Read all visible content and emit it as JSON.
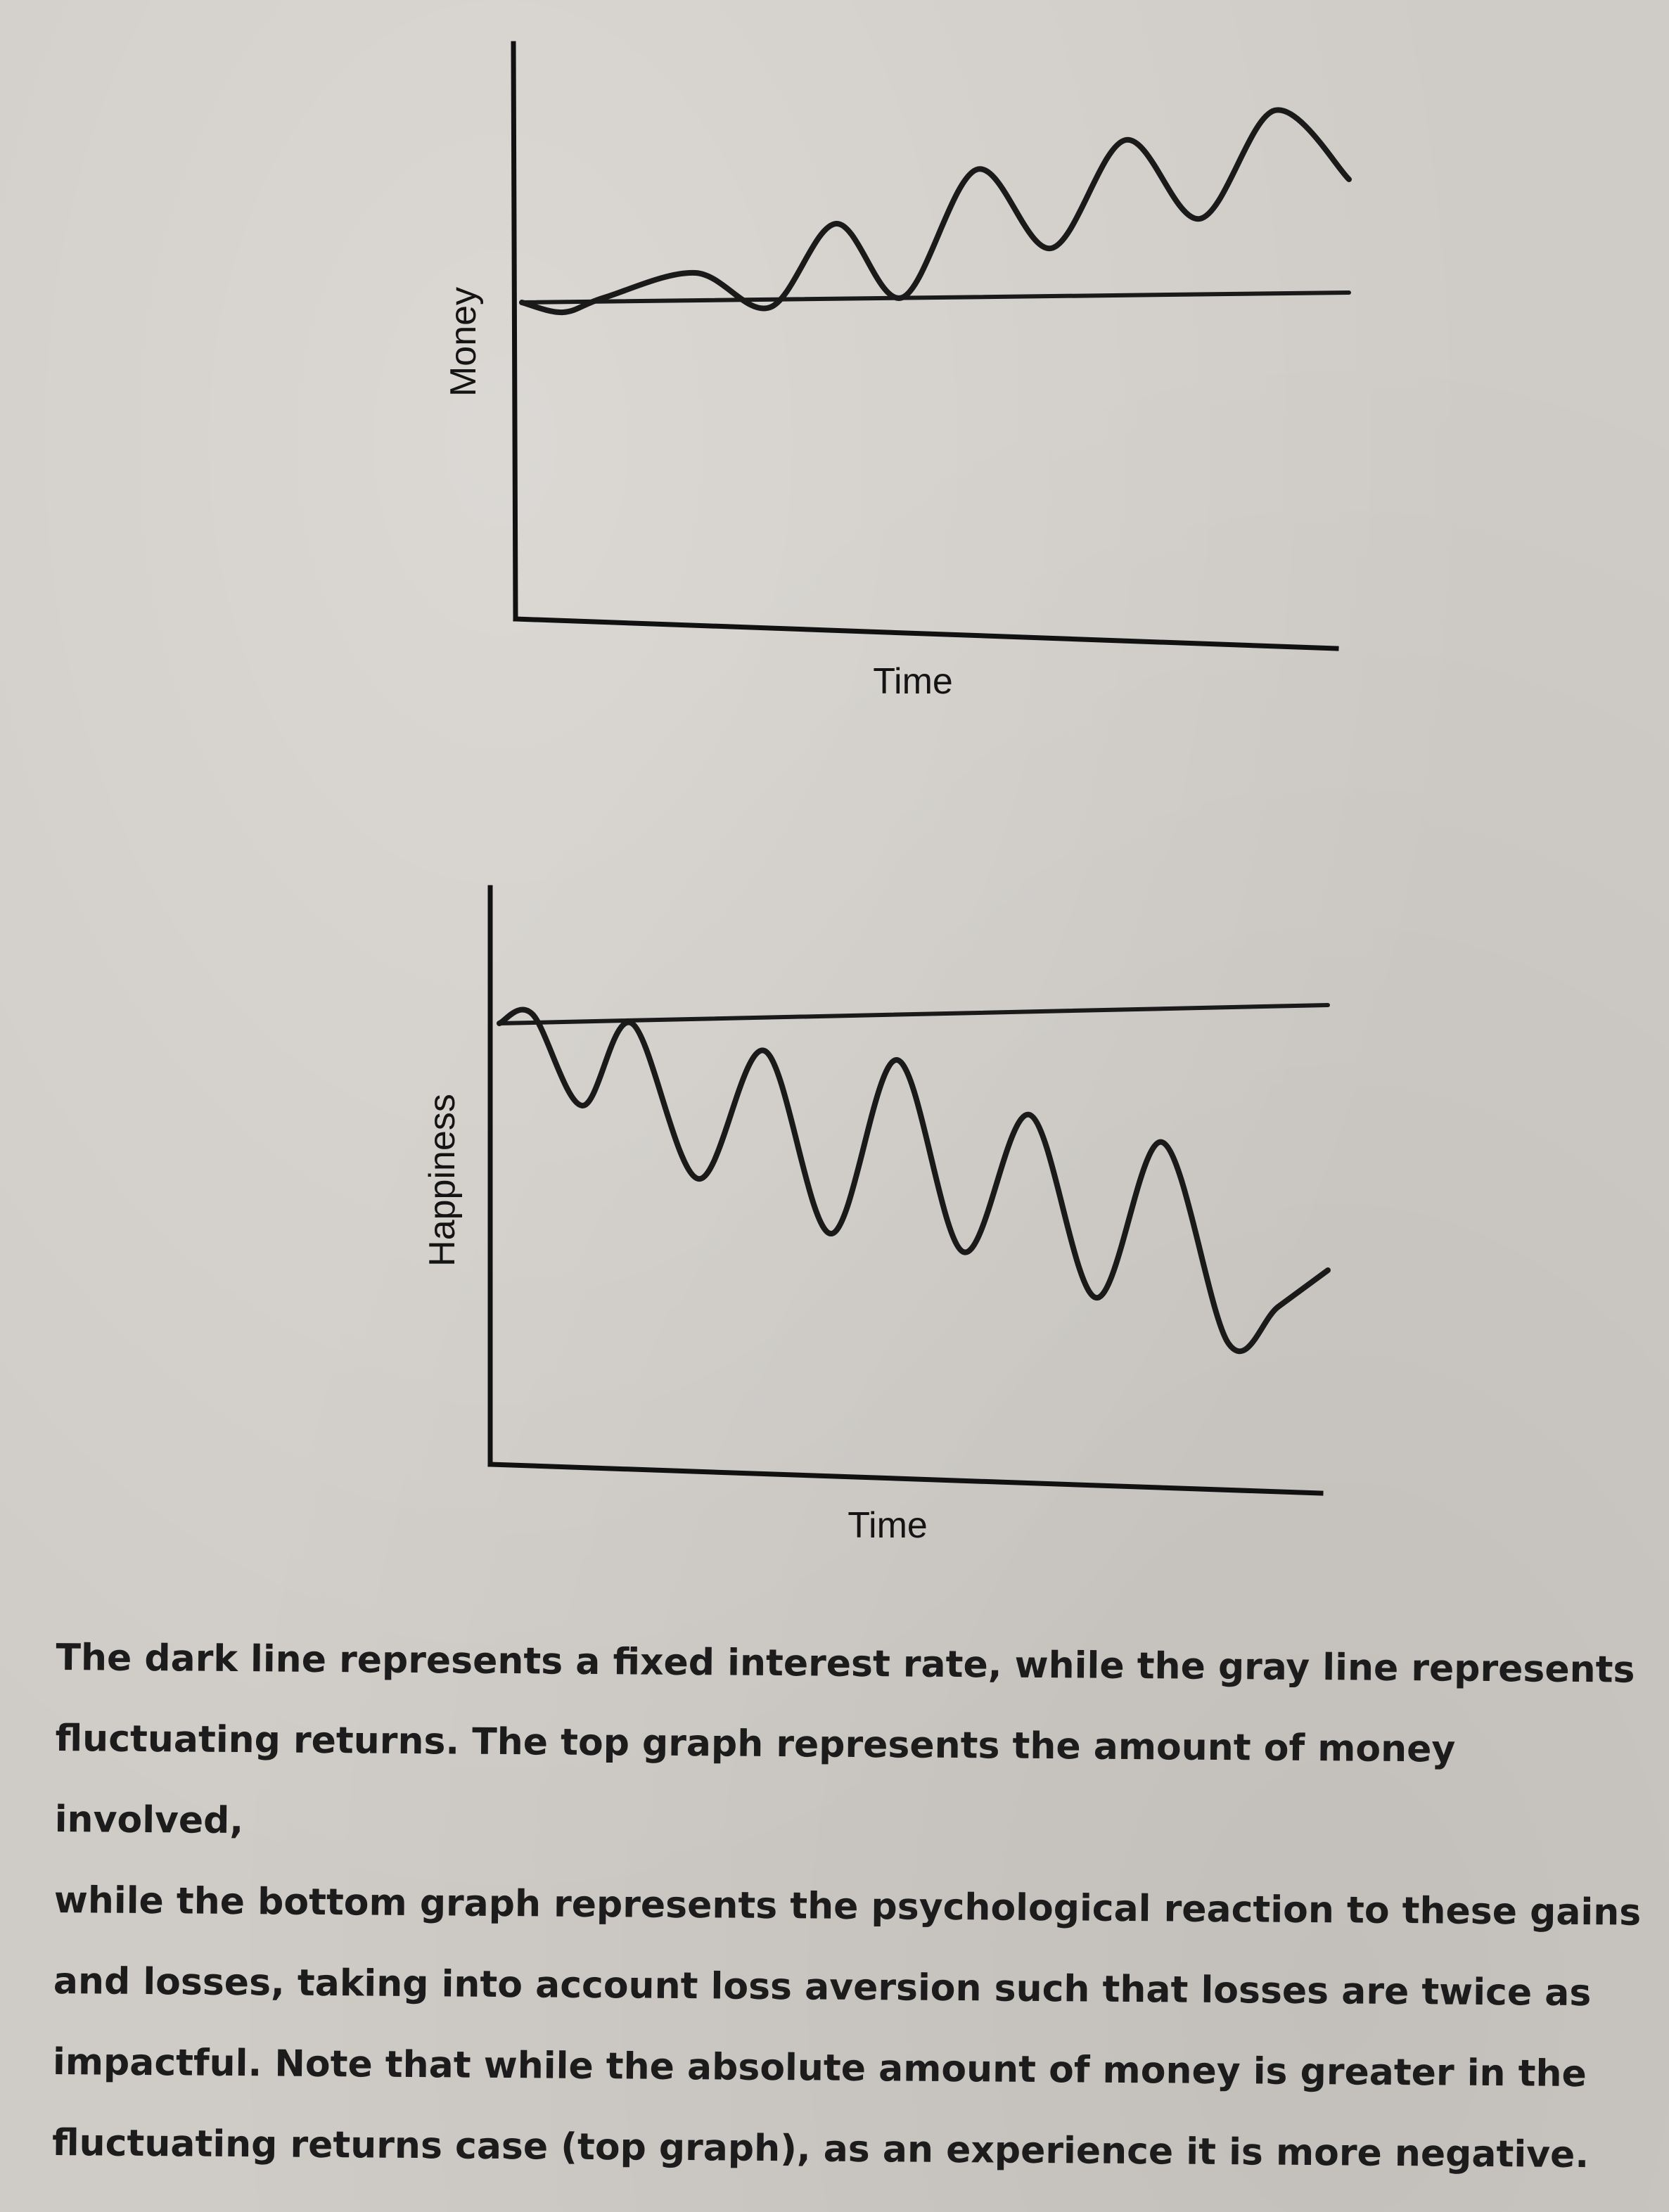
{
  "chart_data": [
    {
      "type": "line",
      "ylabel": "Money",
      "xlabel": "Time",
      "series": [
        {
          "style": "straight",
          "color": "#1a1a1a",
          "x": [
            0,
            1
          ],
          "y": [
            1.0,
            1.1
          ]
        },
        {
          "style": "wavy",
          "color": "#1a1a1a",
          "x": [
            0,
            0.05,
            0.1,
            0.21,
            0.3,
            0.38,
            0.46,
            0.55,
            0.64,
            0.73,
            0.82,
            0.91,
            1.0
          ],
          "y": [
            1.0,
            0.9,
            1.05,
            1.3,
            0.95,
            1.8,
            1.05,
            2.35,
            1.55,
            2.65,
            1.85,
            2.95,
            2.25
          ]
        }
      ],
      "grid": false
    },
    {
      "type": "line",
      "ylabel": "Happiness",
      "xlabel": "Time",
      "series": [
        {
          "style": "straight",
          "color": "#1a1a1a",
          "x": [
            0,
            1
          ],
          "y": [
            1.0,
            1.1
          ]
        },
        {
          "style": "wavy",
          "color": "#1a1a1a",
          "x": [
            0,
            0.04,
            0.1,
            0.16,
            0.24,
            0.32,
            0.4,
            0.48,
            0.56,
            0.64,
            0.72,
            0.8,
            0.88,
            0.94,
            1.0
          ],
          "y": [
            1.0,
            1.05,
            0.55,
            1.0,
            0.15,
            0.85,
            -0.15,
            0.8,
            -0.25,
            0.5,
            -0.5,
            0.35,
            -0.75,
            -0.55,
            -0.35
          ]
        }
      ],
      "grid": false
    }
  ],
  "caption": {
    "lines": [
      "The dark line represents a fixed interest rate, while the gray line represents",
      "fluctuating returns. The top graph represents the amount of money involved,",
      "while the bottom graph represents the psychological reaction to these gains",
      "and losses, taking into account loss aversion such that losses are twice as",
      "impactful. Note that while the absolute amount of money is greater in the",
      "fluctuating returns case (top graph), as an experience it is more negative."
    ]
  }
}
